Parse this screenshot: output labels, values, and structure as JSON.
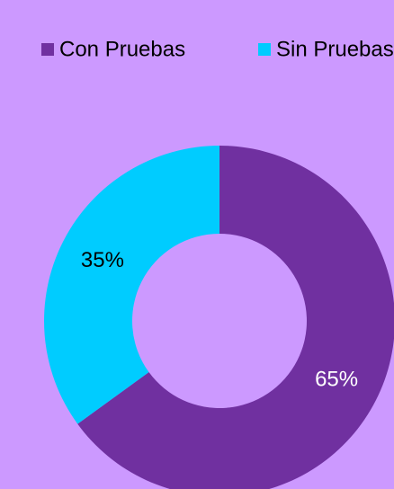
{
  "chart_data": {
    "type": "donut",
    "categories": [
      "Con Pruebas",
      "Sin Pruebas"
    ],
    "values": [
      65,
      35
    ],
    "value_labels": [
      "65%",
      "35%"
    ],
    "colors": [
      "#7030a0",
      "#00ccff"
    ],
    "label_colors": [
      "#ffffff",
      "#000000"
    ],
    "legend": "top"
  }
}
